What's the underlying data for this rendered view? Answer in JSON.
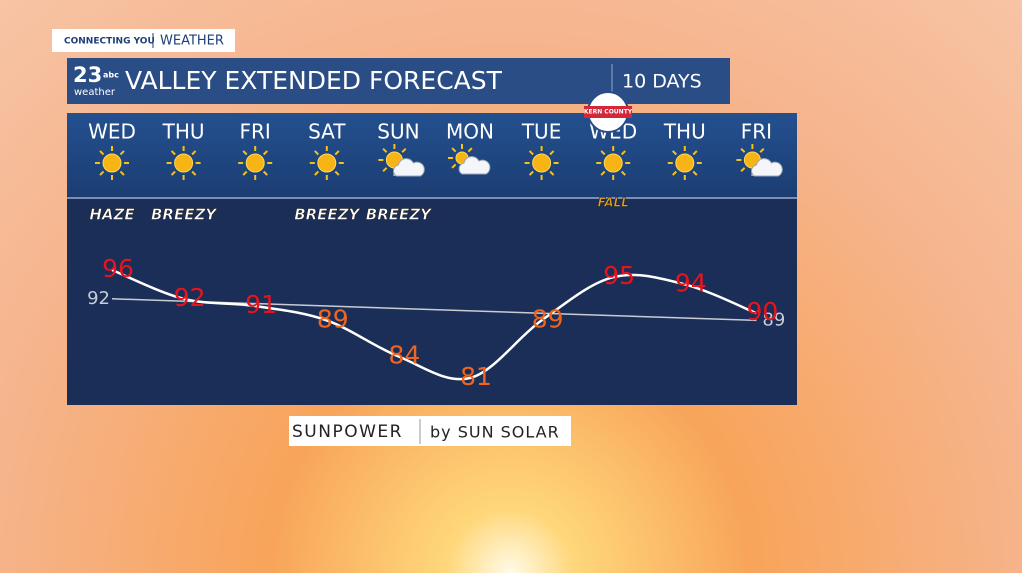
{
  "header": {
    "tag": "CONNECTING YOU",
    "section": "WEATHER",
    "logo_number": "23",
    "logo_network": "abc",
    "logo_word": "weather",
    "title": "VALLEY EXTENDED FORECAST",
    "period": "10 DAYS"
  },
  "badge": "KERN COUNTY",
  "sponsor": {
    "brand": "SUNPOWER",
    "by": "by SUN SOLAR"
  },
  "chart_data": {
    "type": "line",
    "categories": [
      "WED",
      "THU",
      "FRI",
      "SAT",
      "SUN",
      "MON",
      "TUE",
      "WED",
      "THU",
      "FRI"
    ],
    "icons": [
      "sunny",
      "sunny",
      "sunny",
      "sunny",
      "partly-cloudy",
      "mostly-cloudy",
      "sunny",
      "sunny",
      "sunny",
      "partly-cloudy"
    ],
    "notes": [
      "HAZE",
      "BREEZY",
      null,
      "BREEZY",
      "BREEZY",
      null,
      null,
      "FALL",
      null,
      null
    ],
    "series": [
      {
        "values": [
          96,
          92,
          91,
          89,
          84,
          81,
          89,
          95,
          94,
          90
        ],
        "color": "#ffffff",
        "label_colors": [
          "#e8141c",
          "#e8141c",
          "#e8141c",
          "#f0641e",
          "#f0641e",
          "#f0641e",
          "#f0641e",
          "#e8141c",
          "#e8141c",
          "#e8141c"
        ]
      }
    ],
    "normal": {
      "values": [
        92,
        89
      ],
      "color": "#c8ccd4"
    }
  }
}
